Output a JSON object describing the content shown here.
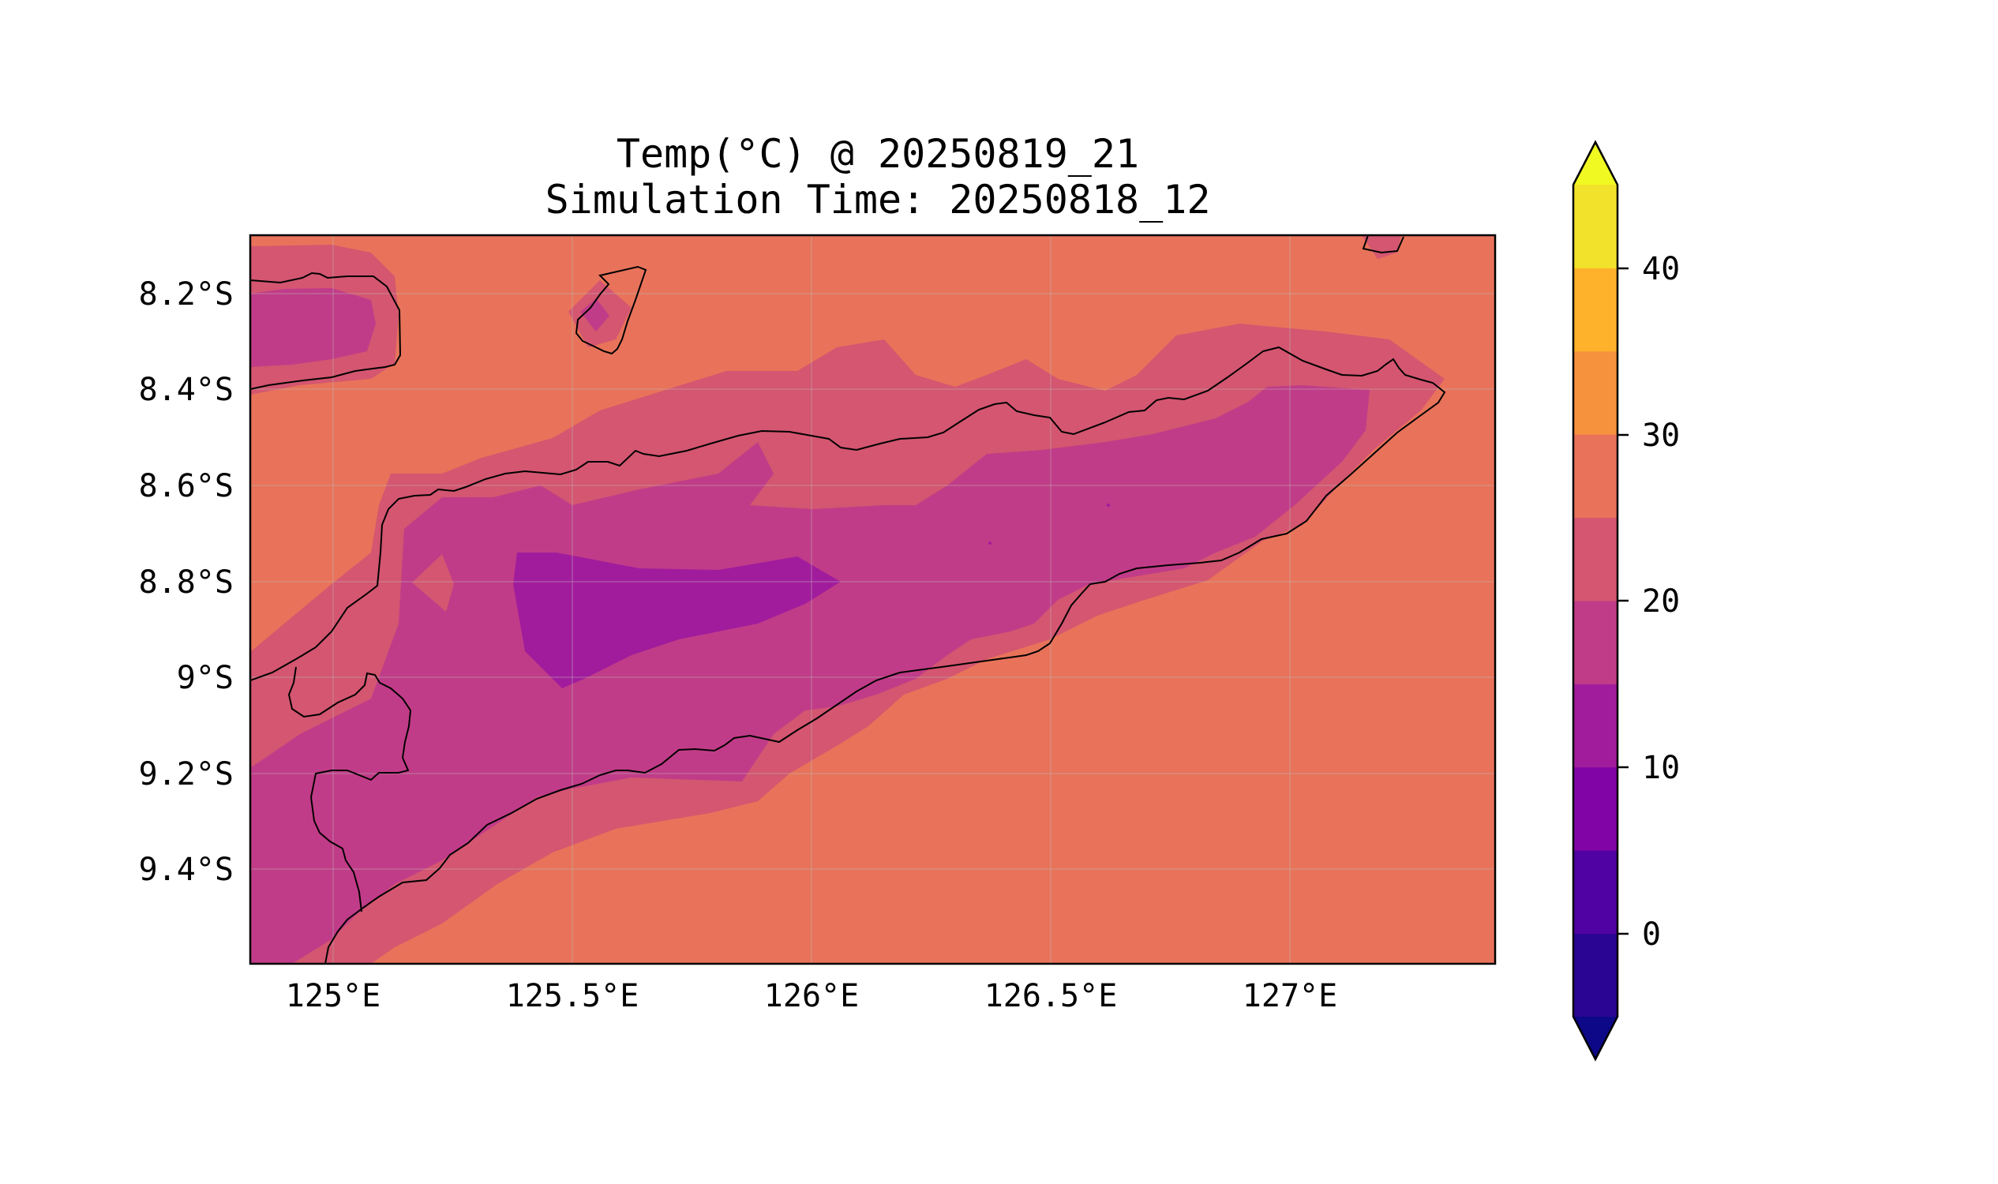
{
  "title": {
    "line1": "Temp(°C) @ 20250819_21",
    "line2": "Simulation Time: 20250818_12"
  },
  "map": {
    "x_ticks": [
      "125°E",
      "125.5°E",
      "126°E",
      "126.5°E",
      "127°E"
    ],
    "y_ticks": [
      "8.2°S",
      "8.4°S",
      "8.6°S",
      "8.8°S",
      "9°S",
      "9.2°S",
      "9.4°S"
    ],
    "colors": {
      "ocean_25_30": "#e8735a",
      "band_20_25": "#d45670",
      "band_15_20": "#c13c88",
      "band_10_15": "#a11c9c",
      "coastline": "#000000"
    }
  },
  "colorbar": {
    "tick_labels": [
      "40",
      "30",
      "20",
      "10",
      "0"
    ],
    "levels": [
      -5,
      0,
      5,
      10,
      15,
      20,
      25,
      30,
      35,
      40,
      45
    ],
    "colors": [
      "#0d0887",
      "#2a0593",
      "#5102a3",
      "#8104a7",
      "#a11c9c",
      "#c13c88",
      "#d45670",
      "#e8735a",
      "#f6913e",
      "#feb22b",
      "#f2e22b",
      "#f0f921"
    ],
    "extend": "both"
  }
}
